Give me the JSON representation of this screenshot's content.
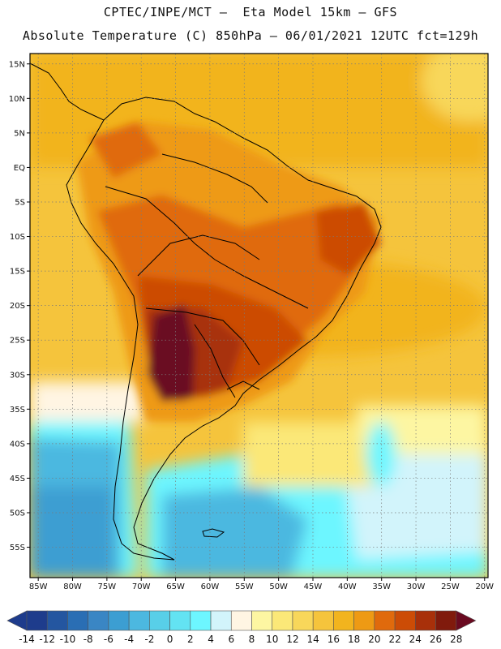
{
  "title": {
    "line1": "CPTEC/INPE/MCT –  Eta Model 15km – GFS",
    "line2": "Absolute Temperature (C) 850hPa – 06/01/2021 12UTC fct=129h"
  },
  "map": {
    "lat_labels": [
      "15N",
      "10N",
      "5N",
      "EQ",
      "5S",
      "10S",
      "15S",
      "20S",
      "25S",
      "30S",
      "35S",
      "40S",
      "45S",
      "50S",
      "55S"
    ],
    "lon_labels": [
      "85W",
      "80W",
      "75W",
      "70W",
      "65W",
      "60W",
      "55W",
      "50W",
      "45W",
      "40W",
      "35W",
      "30W",
      "25W",
      "20W"
    ],
    "lat_values": [
      15,
      10,
      5,
      0,
      -5,
      -10,
      -15,
      -20,
      -25,
      -30,
      -35,
      -40,
      -45,
      -50,
      -55
    ],
    "lon_values": [
      -85,
      -80,
      -75,
      -70,
      -65,
      -60,
      -55,
      -50,
      -45,
      -40,
      -35,
      -30,
      -25,
      -20
    ]
  },
  "colorbar": {
    "labels": [
      "-14",
      "-12",
      "-10",
      "-8",
      "-6",
      "-4",
      "-2",
      "0",
      "2",
      "4",
      "6",
      "8",
      "10",
      "12",
      "14",
      "16",
      "18",
      "20",
      "22",
      "24",
      "26",
      "28"
    ],
    "colors": [
      "#1e3c8c",
      "#2456a0",
      "#2a6eb4",
      "#3a86c4",
      "#3c9ed2",
      "#4cb8e0",
      "#58cfe8",
      "#63e3f2",
      "#6df6ff",
      "#d2f4fb",
      "#fff5e3",
      "#fdf6a2",
      "#fbe878",
      "#f8d75a",
      "#f5c43c",
      "#f2b41e",
      "#ee9a14",
      "#e06a0c",
      "#cc4c06",
      "#a8300a",
      "#801a0c",
      "#6a0a20"
    ]
  }
}
